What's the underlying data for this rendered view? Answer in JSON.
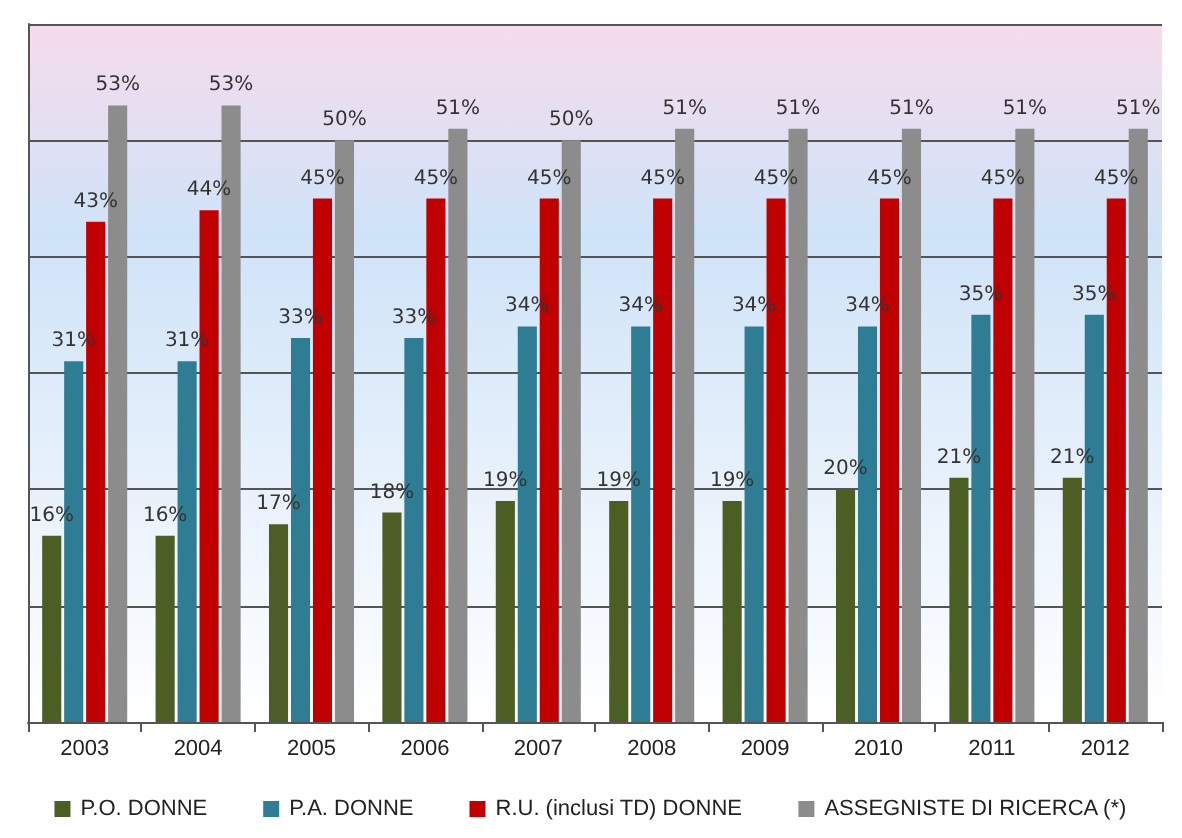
{
  "chart_data": {
    "type": "bar",
    "categories": [
      "2003",
      "2004",
      "2005",
      "2006",
      "2007",
      "2008",
      "2009",
      "2010",
      "2011",
      "2012"
    ],
    "series": [
      {
        "name": "P.O. DONNE",
        "color": "#4b5e24",
        "values": [
          16,
          16,
          17,
          18,
          19,
          19,
          19,
          20,
          21,
          21
        ],
        "value_labels": [
          "16%",
          "16%",
          "17%",
          "18%",
          "19%",
          "19%",
          "19%",
          "20%",
          "21%",
          "21%"
        ]
      },
      {
        "name": "P.A. DONNE",
        "color": "#2f7d95",
        "values": [
          31,
          31,
          33,
          33,
          34,
          34,
          34,
          34,
          35,
          35
        ],
        "value_labels": [
          "31%",
          "31%",
          "33%",
          "33%",
          "34%",
          "34%",
          "34%",
          "34%",
          "35%",
          "35%"
        ]
      },
      {
        "name": "R.U. (inclusi TD) DONNE",
        "color": "#c00000",
        "values": [
          43,
          44,
          45,
          45,
          45,
          45,
          45,
          45,
          45,
          45
        ],
        "value_labels": [
          "43%",
          "44%",
          "45%",
          "45%",
          "45%",
          "45%",
          "45%",
          "45%",
          "45%",
          "45%"
        ]
      },
      {
        "name": "ASSEGNISTE DI RICERCA (*)",
        "color": "#8c8c8c",
        "values": [
          53,
          53,
          50,
          51,
          50,
          51,
          51,
          51,
          51,
          51
        ],
        "value_labels": [
          "53%",
          "53%",
          "50%",
          "51%",
          "50%",
          "51%",
          "51%",
          "51%",
          "51%",
          "51%"
        ]
      }
    ],
    "ylim": [
      0,
      60
    ],
    "yticks": [
      0,
      10,
      20,
      30,
      40,
      50,
      60
    ],
    "tick_labels": "x",
    "grid": "y",
    "legend": "bottom"
  }
}
